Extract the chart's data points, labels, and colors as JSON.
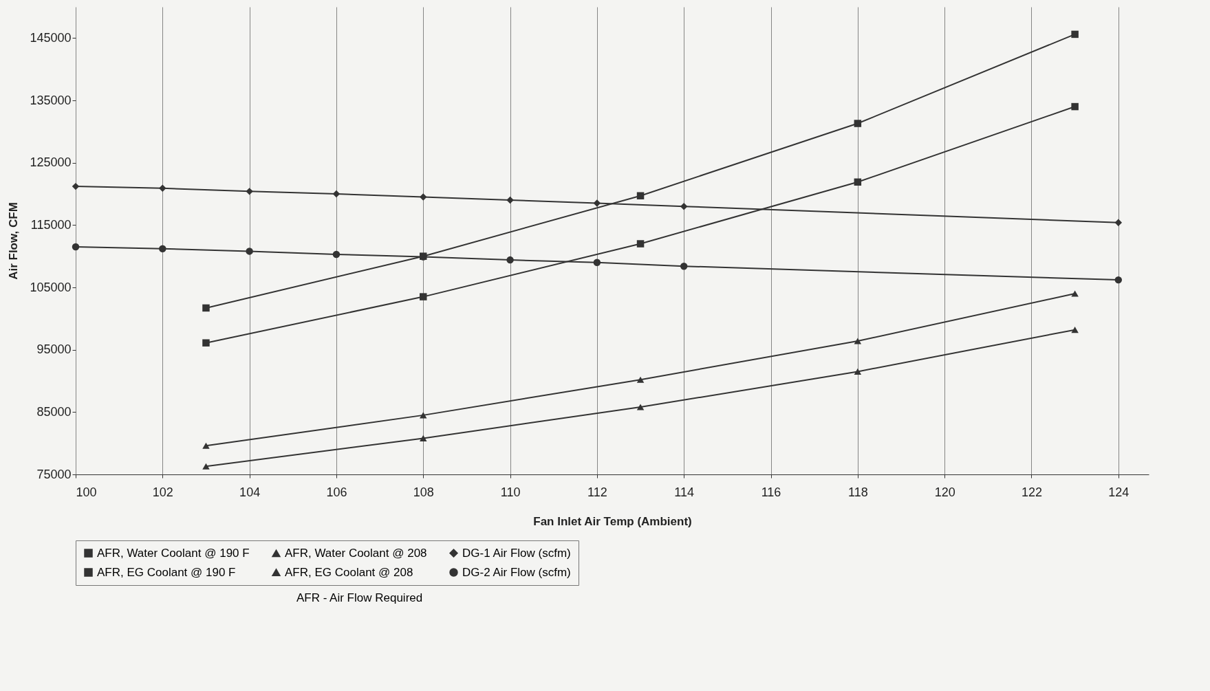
{
  "chart_data": {
    "type": "line",
    "xlabel": "Fan Inlet Air Temp (Ambient)",
    "ylabel": "Air Flow, CFM",
    "xlim": [
      100,
      124.7
    ],
    "xticks": [
      100,
      102,
      104,
      106,
      108,
      110,
      112,
      114,
      116,
      118,
      120,
      122,
      124
    ],
    "ylim": [
      75000,
      150000
    ],
    "yticks": [
      75000,
      85000,
      95000,
      105000,
      115000,
      125000,
      135000,
      145000
    ],
    "grid": "x",
    "legend": "bottom",
    "annotations": [
      "AFR - Air Flow Required"
    ],
    "series": [
      {
        "name": "AFR, Water Coolant @ 190 F",
        "color": "#333333",
        "marker": "square",
        "x": [
          103,
          108,
          113,
          118,
          123
        ],
        "values": [
          96100,
          103500,
          112000,
          121900,
          134000
        ]
      },
      {
        "name": "AFR, Water Coolant @ 208",
        "color": "#333333",
        "marker": "triangle",
        "x": [
          103,
          108,
          113,
          118,
          123
        ],
        "values": [
          76300,
          80800,
          85800,
          91500,
          98200
        ]
      },
      {
        "name": "DG-1 Air Flow (scfm)",
        "color": "#333333",
        "marker": "diamond",
        "x": [
          100,
          102,
          104,
          106,
          108,
          110,
          112,
          114,
          124
        ],
        "values": [
          121200,
          120900,
          120400,
          120000,
          119500,
          119000,
          118500,
          118000,
          115400
        ]
      },
      {
        "name": "AFR, EG Coolant @ 190 F",
        "color": "#333333",
        "marker": "square",
        "x": [
          103,
          108,
          113,
          118,
          123
        ],
        "values": [
          101700,
          110000,
          119700,
          131300,
          145600
        ]
      },
      {
        "name": "AFR, EG Coolant @ 208",
        "color": "#333333",
        "marker": "triangle",
        "x": [
          103,
          108,
          113,
          118,
          123
        ],
        "values": [
          79600,
          84500,
          90200,
          96400,
          104000
        ]
      },
      {
        "name": "DG-2 Air Flow (scfm)",
        "color": "#333333",
        "marker": "circle",
        "x": [
          100,
          102,
          104,
          106,
          108,
          110,
          112,
          114,
          124
        ],
        "values": [
          111500,
          111200,
          110800,
          110300,
          109900,
          109400,
          109000,
          108400,
          106200
        ]
      }
    ]
  }
}
